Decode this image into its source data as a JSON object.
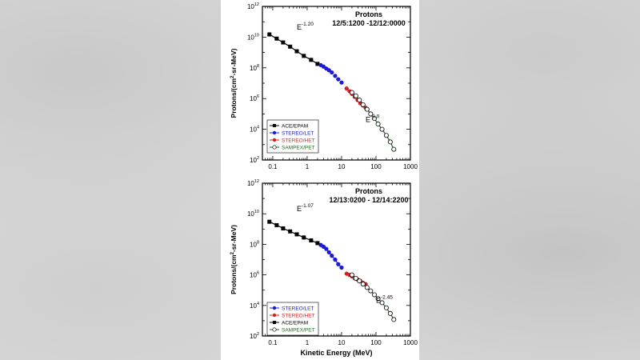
{
  "chart_data": [
    {
      "type": "scatter",
      "title": "Protons",
      "subtitle": "12/5:1200 -12/12:0000",
      "ylabel": "Protons/(cm2-sr-MeV)",
      "xlabel": "",
      "xscale": "log",
      "yscale": "log",
      "xlim": [
        0.05,
        1000
      ],
      "ylim": [
        100,
        1000000000000
      ],
      "x_ticks": [
        "0.1",
        "1",
        "10",
        "100",
        "1000"
      ],
      "y_ticks": [
        "10^2",
        "10^4",
        "10^6",
        "10^8",
        "10^10",
        "10^12"
      ],
      "legend_position": "bottom-left",
      "annotations": [
        {
          "text": "E",
          "sup": "-1.20",
          "x": 0.5,
          "y": 30000000000
        },
        {
          "text": "E",
          "sup": "-3.0",
          "x": 50,
          "y": 30000
        }
      ],
      "series": [
        {
          "name": "ACE/EPAM",
          "color": "#000000",
          "marker": "square",
          "line": true,
          "x": [
            0.08,
            0.13,
            0.2,
            0.32,
            0.5,
            0.8,
            1.3,
            2.0
          ],
          "y": [
            15000000000,
            8000000000,
            4500000000,
            2400000000,
            1200000000,
            600000000,
            330000000,
            180000000
          ]
        },
        {
          "name": "STEREO/LET",
          "color": "#1a1adb",
          "marker": "circle",
          "line": false,
          "x": [
            2.5,
            3.0,
            3.6,
            4.3,
            5.2,
            6.5,
            8.0,
            10.0
          ],
          "y": [
            150000000,
            120000000,
            90000000,
            70000000,
            50000000,
            30000000,
            18000000,
            11000000
          ]
        },
        {
          "name": "STEREO/HET",
          "color": "#d42020",
          "marker": "circle",
          "line": false,
          "x": [
            14,
            17,
            20,
            24,
            29,
            35,
            42,
            50
          ],
          "y": [
            4500000,
            3000000,
            2000000,
            1300000,
            800000,
            500000,
            350000,
            250000
          ]
        },
        {
          "name": "SAMPEX/PET",
          "color": "#1e6b1e",
          "marker": "open-circle",
          "line": true,
          "x": [
            20,
            26,
            33,
            42,
            55,
            70,
            90,
            115,
            150,
            200,
            260,
            330
          ],
          "y": [
            2500000,
            1500000,
            800000,
            400000,
            200000,
            100000,
            50000,
            22000,
            10000,
            4000,
            1500,
            500
          ]
        }
      ]
    },
    {
      "type": "scatter",
      "title": "Protons",
      "subtitle": "12/13:0200 - 12/14:2200",
      "ylabel": "Protons/(cm2-sr-MeV)",
      "xlabel": "Kinetic Energy (MeV)",
      "xscale": "log",
      "yscale": "log",
      "xlim": [
        0.05,
        1000
      ],
      "ylim": [
        100,
        1000000000000
      ],
      "x_ticks": [
        "0.1",
        "1",
        "10",
        "100",
        "1000"
      ],
      "y_ticks": [
        "10^2",
        "10^4",
        "10^6",
        "10^8",
        "10^10",
        "10^12"
      ],
      "legend_position": "bottom-left",
      "annotations": [
        {
          "text": "E",
          "sup": "-1.07",
          "x": 0.5,
          "y": 15000000000
        },
        {
          "text": "E",
          "sup": "-2.45",
          "x": 100,
          "y": 15000
        }
      ],
      "series": [
        {
          "name": "STEREO/LET",
          "color": "#1a1adb",
          "marker": "circle",
          "line": true,
          "x": [
            2.5,
            3.0,
            3.6,
            4.3,
            5.2,
            6.5,
            8.0,
            10.0
          ],
          "y": [
            90000000,
            70000000,
            50000000,
            30000000,
            18000000,
            10000000,
            5000000,
            3000000
          ]
        },
        {
          "name": "STEREO/HET",
          "color": "#d42020",
          "marker": "circle",
          "line": true,
          "x": [
            14,
            17,
            20,
            24,
            29,
            35,
            42,
            50
          ],
          "y": [
            1200000,
            1000000,
            800000,
            600000,
            500000,
            400000,
            300000,
            250000
          ]
        },
        {
          "name": "ACE/EPAM",
          "color": "#000000",
          "marker": "square",
          "line": true,
          "x": [
            0.08,
            0.13,
            0.2,
            0.32,
            0.5,
            0.8,
            1.3,
            2.0
          ],
          "y": [
            3000000000,
            1800000000,
            1100000000,
            700000000,
            450000000,
            280000000,
            180000000,
            120000000
          ]
        },
        {
          "name": "SAMPEX/PET",
          "color": "#1e6b1e",
          "marker": "open-circle",
          "line": true,
          "x": [
            20,
            26,
            33,
            42,
            55,
            70,
            90,
            115,
            150,
            200,
            260,
            330
          ],
          "y": [
            1000000,
            600000,
            400000,
            250000,
            150000,
            90000,
            50000,
            28000,
            15000,
            7000,
            3000,
            1200
          ]
        }
      ]
    }
  ]
}
